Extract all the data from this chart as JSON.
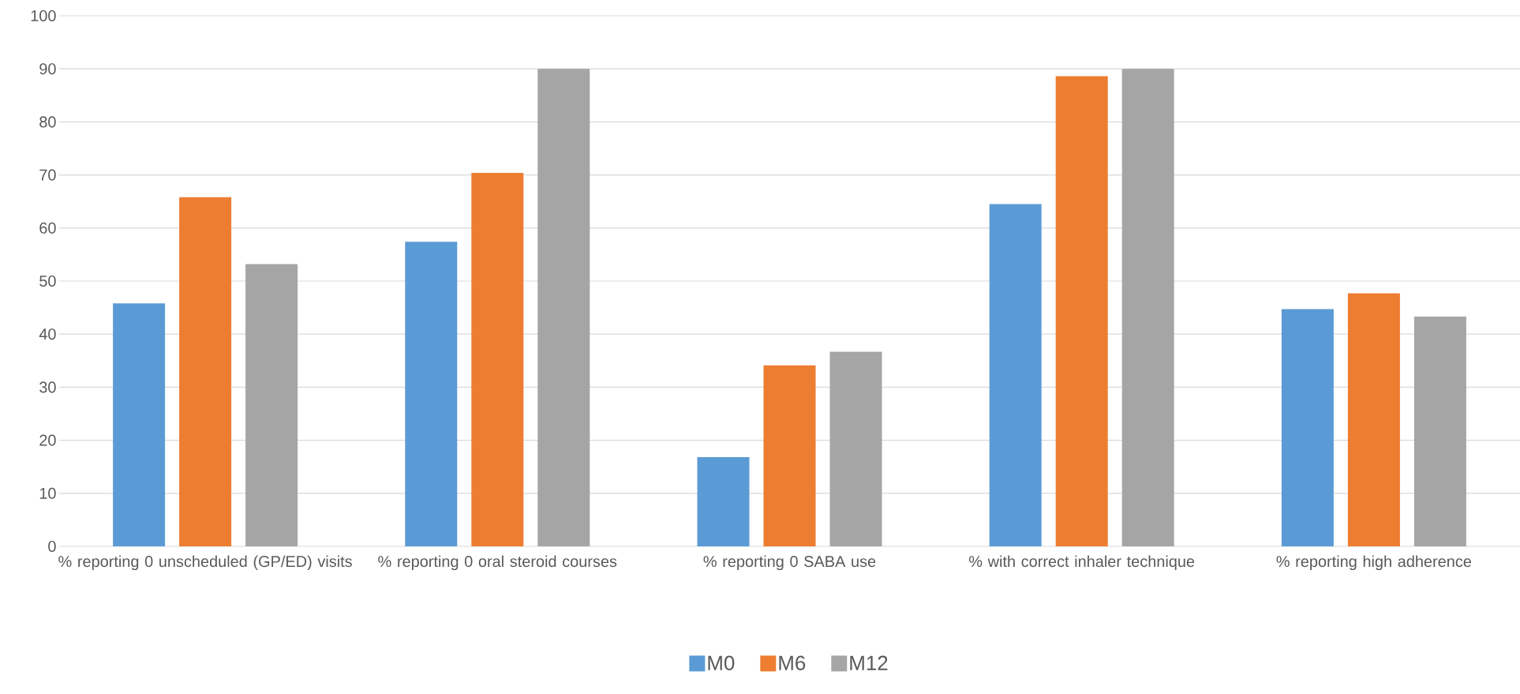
{
  "chart_data": {
    "type": "bar",
    "categories": [
      "% reporting 0 unscheduled (GP/ED) visits",
      "% reporting 0 oral steroid courses",
      "% reporting 0 SABA use",
      "% with correct inhaler technique",
      "% reporting high adherence"
    ],
    "series": [
      {
        "name": "M0",
        "color": "#5b9bd5",
        "values": [
          45.8,
          57.4,
          16.8,
          64.5,
          44.7
        ]
      },
      {
        "name": "M6",
        "color": "#ed7d31",
        "values": [
          65.8,
          70.4,
          34.1,
          88.6,
          47.7
        ]
      },
      {
        "name": "M12",
        "color": "#a5a5a5",
        "values": [
          53.2,
          90,
          36.7,
          90,
          43.3
        ]
      }
    ],
    "ylim": [
      0,
      100
    ],
    "yticks": [
      0,
      10,
      20,
      30,
      40,
      50,
      60,
      70,
      80,
      90,
      100
    ],
    "grid": "y",
    "legend": "bottom"
  }
}
